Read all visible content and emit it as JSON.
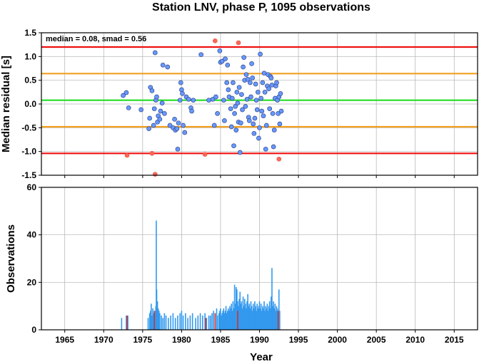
{
  "chart_data": [
    {
      "type": "scatter",
      "title": "Station LNV, phase P, 1095 observations",
      "annotation": "median = 0.08, smad = 0.56",
      "ylabel": "Median residual [s]",
      "xlim": [
        1962,
        2018
      ],
      "ylim": [
        -1.5,
        1.5
      ],
      "xticks": [
        "1965",
        "1970",
        "1975",
        "1980",
        "1985",
        "1990",
        "1995",
        "2000",
        "2005",
        "2010",
        "2015"
      ],
      "yticks": [
        "-1.5",
        "-1.0",
        "-0.5",
        "0.0",
        "0.5",
        "1.0",
        "1.5"
      ],
      "grid": true,
      "reference_lines": [
        {
          "y": 1.2,
          "color": "#ee1111"
        },
        {
          "y": 0.64,
          "color": "#f0a020"
        },
        {
          "y": 0.08,
          "color": "#22dd22"
        },
        {
          "y": -0.48,
          "color": "#f0a020"
        },
        {
          "y": -1.04,
          "color": "#ee1111"
        }
      ],
      "point_colors": {
        "inlier": "#6699ff",
        "outlier": "#ff6655"
      },
      "points": [
        [
          72.5,
          0.18
        ],
        [
          72.9,
          0.24
        ],
        [
          73.2,
          -0.08
        ],
        [
          74.8,
          -0.12
        ],
        [
          75.8,
          -0.52
        ],
        [
          75.9,
          -0.3
        ],
        [
          76.0,
          0.35
        ],
        [
          76.2,
          0.28
        ],
        [
          76.4,
          -0.45
        ],
        [
          76.5,
          -0.1
        ],
        [
          76.6,
          1.08
        ],
        [
          76.7,
          0.08
        ],
        [
          76.8,
          0.15
        ],
        [
          76.9,
          -0.38
        ],
        [
          77.0,
          -0.25
        ],
        [
          77.2,
          -0.32
        ],
        [
          77.3,
          -0.15
        ],
        [
          77.5,
          0.02
        ],
        [
          77.6,
          0.82
        ],
        [
          77.8,
          -0.2
        ],
        [
          78.2,
          0.78
        ],
        [
          78.5,
          -0.45
        ],
        [
          78.9,
          -0.5
        ],
        [
          79.1,
          -0.32
        ],
        [
          79.2,
          -0.55
        ],
        [
          79.4,
          -0.52
        ],
        [
          79.5,
          -0.95
        ],
        [
          79.6,
          -0.4
        ],
        [
          79.8,
          0.08
        ],
        [
          79.9,
          0.45
        ],
        [
          80.0,
          0.3
        ],
        [
          80.1,
          0.22
        ],
        [
          80.2,
          -0.45
        ],
        [
          80.4,
          -0.6
        ],
        [
          80.6,
          0.15
        ],
        [
          80.9,
          0.1
        ],
        [
          81.2,
          -0.08
        ],
        [
          81.3,
          -0.15
        ],
        [
          81.5,
          0.08
        ],
        [
          82.5,
          1.04
        ],
        [
          83.5,
          0.08
        ],
        [
          84.0,
          0.1
        ],
        [
          84.2,
          -0.45
        ],
        [
          84.4,
          0.15
        ],
        [
          84.6,
          -0.2
        ],
        [
          84.9,
          1.12
        ],
        [
          85.0,
          0.88
        ],
        [
          85.2,
          0.9
        ],
        [
          85.4,
          0.08
        ],
        [
          85.5,
          -0.35
        ],
        [
          85.6,
          0.95
        ],
        [
          85.8,
          0.45
        ],
        [
          85.9,
          0.82
        ],
        [
          86.0,
          0.3
        ],
        [
          86.1,
          0.15
        ],
        [
          86.3,
          -0.1
        ],
        [
          86.4,
          -0.48
        ],
        [
          86.5,
          0.12
        ],
        [
          86.6,
          0.45
        ],
        [
          86.7,
          -0.88
        ],
        [
          86.8,
          -0.2
        ],
        [
          86.9,
          -0.05
        ],
        [
          87.0,
          -0.55
        ],
        [
          87.1,
          0.25
        ],
        [
          87.2,
          0.02
        ],
        [
          87.3,
          -0.38
        ],
        [
          87.4,
          0.35
        ],
        [
          87.5,
          -1.02
        ],
        [
          87.6,
          -0.4
        ],
        [
          87.7,
          0.2
        ],
        [
          87.8,
          -0.12
        ],
        [
          87.9,
          0.78
        ],
        [
          88.0,
          0.98
        ],
        [
          88.1,
          0.5
        ],
        [
          88.2,
          -0.05
        ],
        [
          88.3,
          0.62
        ],
        [
          88.4,
          0.1
        ],
        [
          88.5,
          0.52
        ],
        [
          88.6,
          -0.28
        ],
        [
          88.7,
          -0.35
        ],
        [
          88.8,
          0.45
        ],
        [
          88.9,
          0.15
        ],
        [
          89.0,
          0.85
        ],
        [
          89.1,
          0.55
        ],
        [
          89.2,
          -0.42
        ],
        [
          89.3,
          -0.62
        ],
        [
          89.4,
          -0.3
        ],
        [
          89.5,
          0.42
        ],
        [
          89.6,
          0.08
        ],
        [
          89.7,
          -0.12
        ],
        [
          89.8,
          0.25
        ],
        [
          89.9,
          -0.72
        ],
        [
          90.0,
          -0.5
        ],
        [
          90.1,
          1.05
        ],
        [
          90.2,
          0.12
        ],
        [
          90.3,
          -0.15
        ],
        [
          90.4,
          0.45
        ],
        [
          90.5,
          -0.25
        ],
        [
          90.6,
          0.65
        ],
        [
          90.7,
          0.25
        ],
        [
          90.8,
          -0.95
        ],
        [
          90.9,
          -0.45
        ],
        [
          91.0,
          0.38
        ],
        [
          91.1,
          0.62
        ],
        [
          91.2,
          0.32
        ],
        [
          91.3,
          -0.1
        ],
        [
          91.4,
          0.58
        ],
        [
          91.5,
          0.55
        ],
        [
          91.6,
          0.4
        ],
        [
          91.7,
          -0.2
        ],
        [
          91.8,
          -0.9
        ],
        [
          91.9,
          -0.55
        ],
        [
          92.0,
          0.12
        ],
        [
          92.1,
          0.38
        ],
        [
          92.2,
          0.45
        ],
        [
          92.3,
          0.08
        ],
        [
          92.4,
          -0.2
        ],
        [
          92.5,
          0.15
        ],
        [
          92.6,
          -0.42
        ],
        [
          92.7,
          0.22
        ],
        [
          92.8,
          -0.15
        ]
      ],
      "outliers": [
        [
          73.0,
          -1.08
        ],
        [
          76.2,
          -1.04
        ],
        [
          76.6,
          -1.48
        ],
        [
          83.0,
          -1.06
        ],
        [
          84.3,
          1.33
        ],
        [
          87.3,
          1.29
        ],
        [
          92.5,
          -1.16
        ]
      ]
    },
    {
      "type": "bar",
      "xlabel": "Year",
      "ylabel": "Observations",
      "xlim": [
        1962,
        2018
      ],
      "ylim": [
        0,
        60
      ],
      "yticks": [
        "0",
        "20",
        "40",
        "60"
      ],
      "grid": true,
      "bar_colors": {
        "observations": "#3399ee",
        "outliers": "#cc3333",
        "mixed": "#9966aa"
      },
      "bars": [
        [
          72.3,
          5
        ],
        [
          72.9,
          6
        ],
        [
          73.1,
          6
        ],
        [
          75.7,
          5
        ],
        [
          75.9,
          7
        ],
        [
          76.0,
          8
        ],
        [
          76.1,
          11
        ],
        [
          76.2,
          6
        ],
        [
          76.3,
          9
        ],
        [
          76.4,
          7
        ],
        [
          76.5,
          5
        ],
        [
          76.6,
          8
        ],
        [
          76.7,
          10
        ],
        [
          76.75,
          46
        ],
        [
          76.8,
          17
        ],
        [
          76.9,
          12
        ],
        [
          77.0,
          9
        ],
        [
          77.1,
          8
        ],
        [
          77.2,
          7
        ],
        [
          77.4,
          6
        ],
        [
          77.6,
          5
        ],
        [
          77.8,
          7
        ],
        [
          78.0,
          6
        ],
        [
          78.3,
          5
        ],
        [
          78.6,
          6
        ],
        [
          78.9,
          7
        ],
        [
          79.2,
          5
        ],
        [
          79.5,
          6
        ],
        [
          79.8,
          7
        ],
        [
          80.0,
          8
        ],
        [
          80.2,
          6
        ],
        [
          80.5,
          7
        ],
        [
          80.8,
          5
        ],
        [
          81.1,
          6
        ],
        [
          81.4,
          7
        ],
        [
          81.8,
          5
        ],
        [
          82.1,
          6
        ],
        [
          82.4,
          7
        ],
        [
          82.7,
          6
        ],
        [
          83.0,
          7
        ],
        [
          83.2,
          5
        ],
        [
          83.5,
          6
        ],
        [
          83.7,
          6
        ],
        [
          83.9,
          7
        ],
        [
          84.1,
          8
        ],
        [
          84.3,
          7
        ],
        [
          84.5,
          9
        ],
        [
          84.6,
          6
        ],
        [
          84.8,
          7
        ],
        [
          84.9,
          8
        ],
        [
          85.0,
          9
        ],
        [
          85.1,
          6
        ],
        [
          85.2,
          7
        ],
        [
          85.3,
          8
        ],
        [
          85.4,
          9
        ],
        [
          85.5,
          7
        ],
        [
          85.6,
          8
        ],
        [
          85.7,
          10
        ],
        [
          85.8,
          7
        ],
        [
          85.9,
          8
        ],
        [
          86.0,
          9
        ],
        [
          86.1,
          8
        ],
        [
          86.2,
          10
        ],
        [
          86.3,
          9
        ],
        [
          86.4,
          11
        ],
        [
          86.5,
          8
        ],
        [
          86.6,
          12
        ],
        [
          86.7,
          9
        ],
        [
          86.8,
          19
        ],
        [
          86.9,
          11
        ],
        [
          87.0,
          18
        ],
        [
          87.1,
          17
        ],
        [
          87.2,
          12
        ],
        [
          87.3,
          10
        ],
        [
          87.4,
          13
        ],
        [
          87.5,
          16
        ],
        [
          87.6,
          11
        ],
        [
          87.7,
          12
        ],
        [
          87.8,
          9
        ],
        [
          87.9,
          14
        ],
        [
          88.0,
          10
        ],
        [
          88.1,
          13
        ],
        [
          88.2,
          11
        ],
        [
          88.3,
          9
        ],
        [
          88.4,
          12
        ],
        [
          88.5,
          15
        ],
        [
          88.6,
          10
        ],
        [
          88.7,
          11
        ],
        [
          88.8,
          9
        ],
        [
          88.9,
          12
        ],
        [
          89.0,
          10
        ],
        [
          89.1,
          8
        ],
        [
          89.2,
          11
        ],
        [
          89.3,
          9
        ],
        [
          89.4,
          12
        ],
        [
          89.5,
          10
        ],
        [
          89.6,
          8
        ],
        [
          89.7,
          11
        ],
        [
          89.8,
          9
        ],
        [
          89.9,
          10
        ],
        [
          90.0,
          12
        ],
        [
          90.1,
          9
        ],
        [
          90.2,
          11
        ],
        [
          90.3,
          8
        ],
        [
          90.4,
          10
        ],
        [
          90.5,
          9
        ],
        [
          90.6,
          12
        ],
        [
          90.7,
          8
        ],
        [
          90.8,
          10
        ],
        [
          90.9,
          9
        ],
        [
          91.0,
          11
        ],
        [
          91.1,
          8
        ],
        [
          91.2,
          10
        ],
        [
          91.3,
          12
        ],
        [
          91.4,
          9
        ],
        [
          91.5,
          14
        ],
        [
          91.6,
          26
        ],
        [
          91.7,
          10
        ],
        [
          91.8,
          12
        ],
        [
          91.9,
          9
        ],
        [
          92.0,
          11
        ],
        [
          92.1,
          8
        ],
        [
          92.2,
          10
        ],
        [
          92.3,
          9
        ],
        [
          92.5,
          17
        ],
        [
          92.6,
          8
        ]
      ],
      "outlier_bars": [
        [
          73.0,
          6
        ],
        [
          76.5,
          8
        ],
        [
          83.1,
          5
        ],
        [
          84.3,
          7
        ],
        [
          87.2,
          8
        ],
        [
          92.4,
          8
        ]
      ]
    }
  ]
}
